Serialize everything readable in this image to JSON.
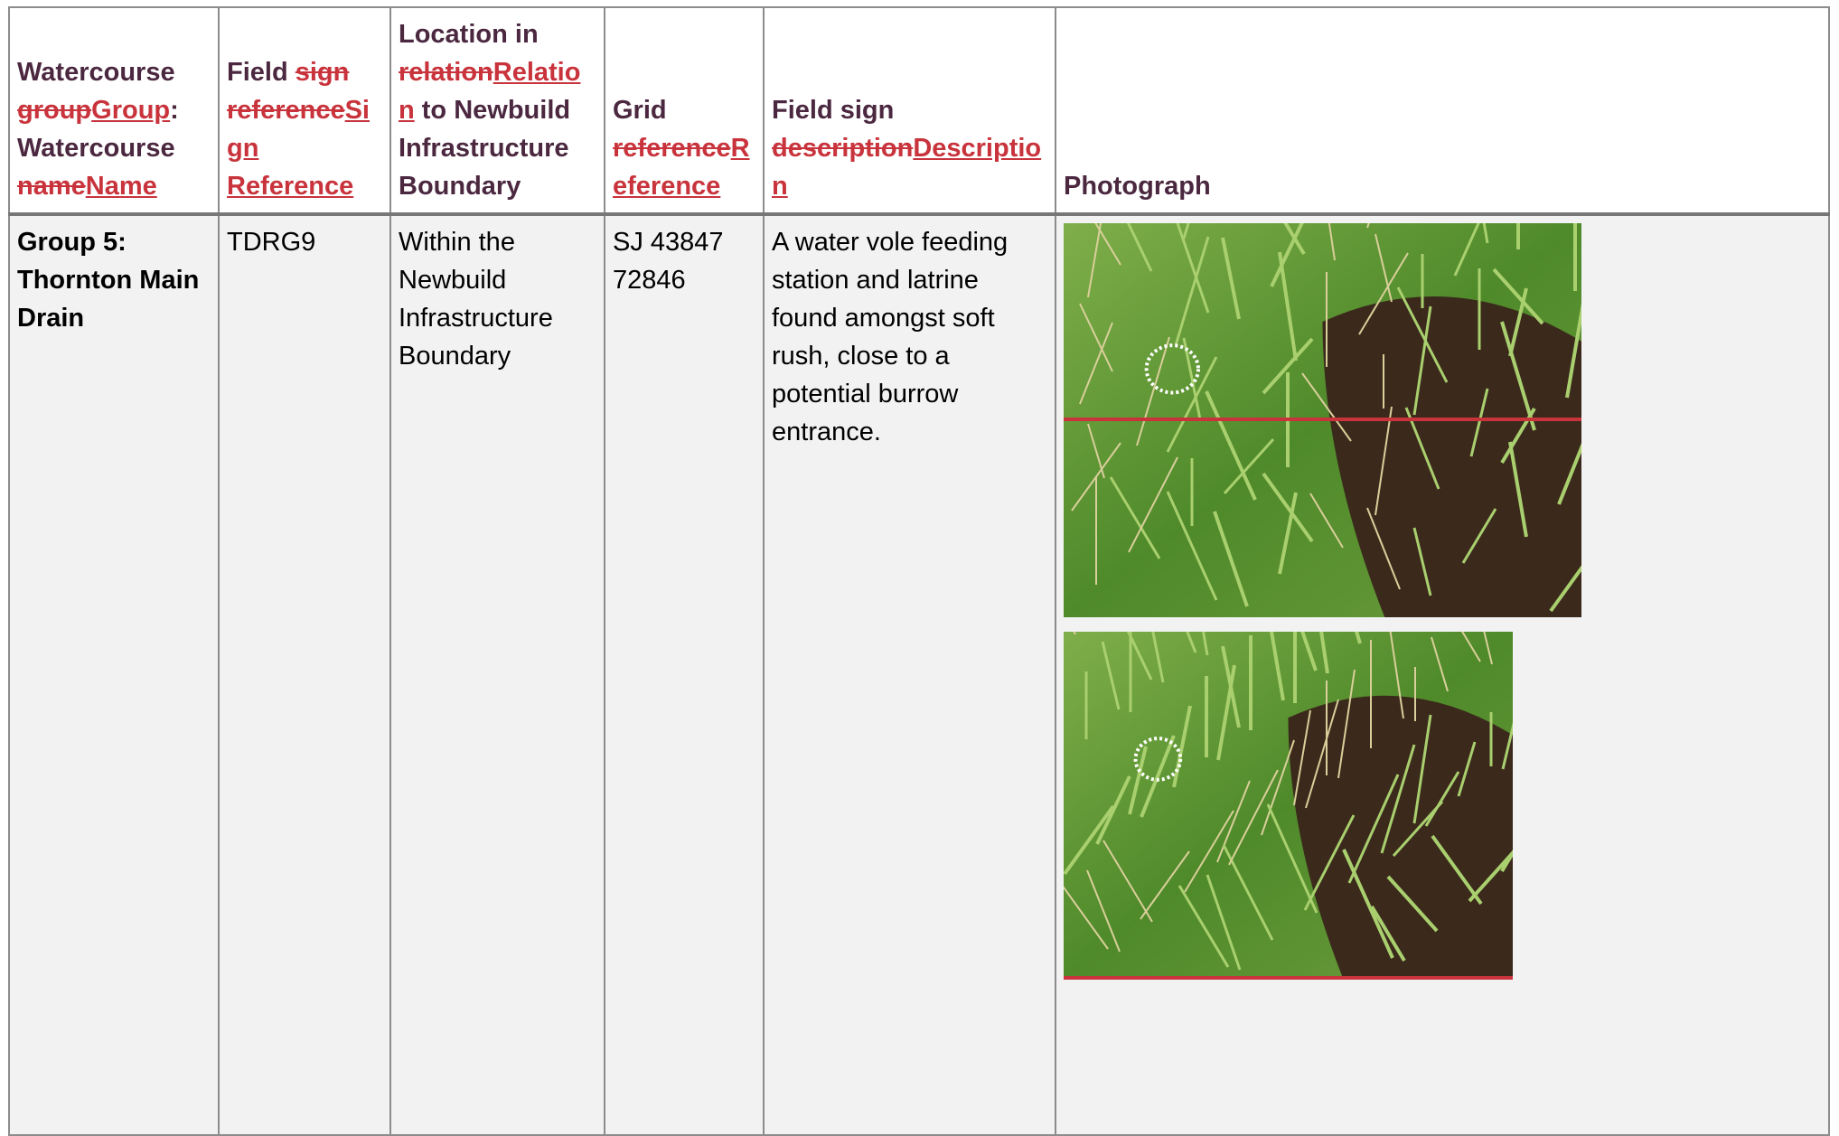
{
  "table": {
    "header": [
      [
        {
          "text": "Watercourse ",
          "kind": "plain"
        },
        {
          "text": "group",
          "kind": "del"
        },
        {
          "text": "Group",
          "kind": "ins"
        },
        {
          "text": ": Watercourse ",
          "kind": "plain"
        },
        {
          "text": "name",
          "kind": "del"
        },
        {
          "text": "Name",
          "kind": "ins"
        }
      ],
      [
        {
          "text": "Field ",
          "kind": "plain"
        },
        {
          "text": "sign reference",
          "kind": "del"
        },
        {
          "text": "Sign Reference",
          "kind": "ins"
        }
      ],
      [
        {
          "text": "Location in ",
          "kind": "plain"
        },
        {
          "text": "relation",
          "kind": "del"
        },
        {
          "text": "Relation",
          "kind": "ins"
        },
        {
          "text": " to Newbuild Infrastructure Boundary",
          "kind": "plain"
        }
      ],
      [
        {
          "text": "Grid ",
          "kind": "plain"
        },
        {
          "text": "reference",
          "kind": "del"
        },
        {
          "text": "Reference",
          "kind": "ins"
        }
      ],
      [
        {
          "text": "Field sign ",
          "kind": "plain"
        },
        {
          "text": "description",
          "kind": "del"
        },
        {
          "text": "Description",
          "kind": "ins"
        }
      ],
      [
        {
          "text": "Photograph",
          "kind": "plain"
        }
      ]
    ],
    "rows": [
      [
        "Group 5: Thornton Main Drain",
        "TDRG9",
        "Within the Newbuild Infrastructure Boundary",
        "SJ 43847 72846",
        "A water vole feeding station and latrine found amongst soft rush, close to a potential burrow entrance."
      ]
    ]
  }
}
